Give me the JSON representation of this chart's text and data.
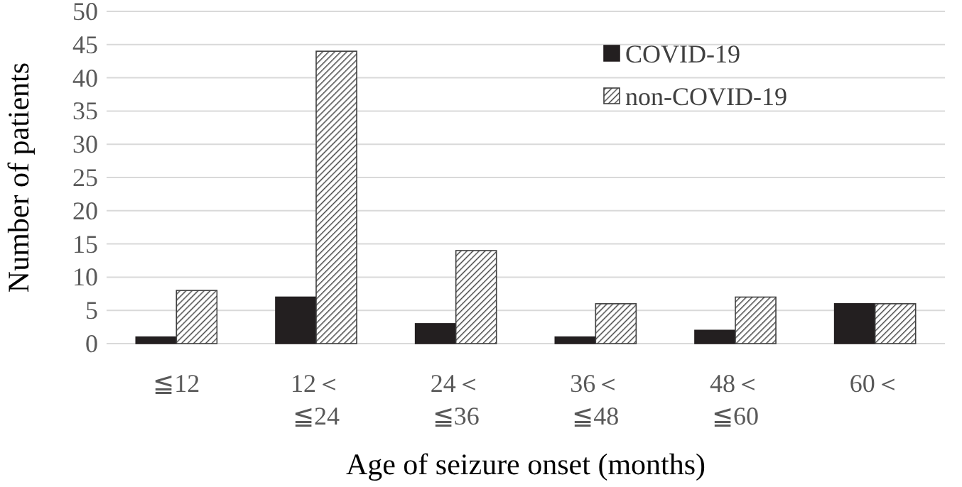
{
  "chart_data": {
    "type": "bar",
    "xlabel": "Age of seizure onset (months)",
    "ylabel": "Number of patients",
    "categories": [
      "≦12",
      "12＜\n≦24",
      "24＜\n≦36",
      "36＜\n≦48",
      "48＜\n≦60",
      "60＜"
    ],
    "series": [
      {
        "name": "COVID-19",
        "color": "#231f20",
        "values": [
          1,
          7,
          3,
          1,
          2,
          6
        ]
      },
      {
        "name": "non-COVID-19",
        "color": "#404040",
        "values": [
          8,
          44,
          14,
          6,
          7,
          6
        ]
      }
    ],
    "ylim": [
      0,
      50
    ],
    "yticks": [
      0,
      5,
      10,
      15,
      20,
      25,
      30,
      35,
      40,
      45,
      50
    ],
    "grid": "y",
    "legend": "top right"
  }
}
